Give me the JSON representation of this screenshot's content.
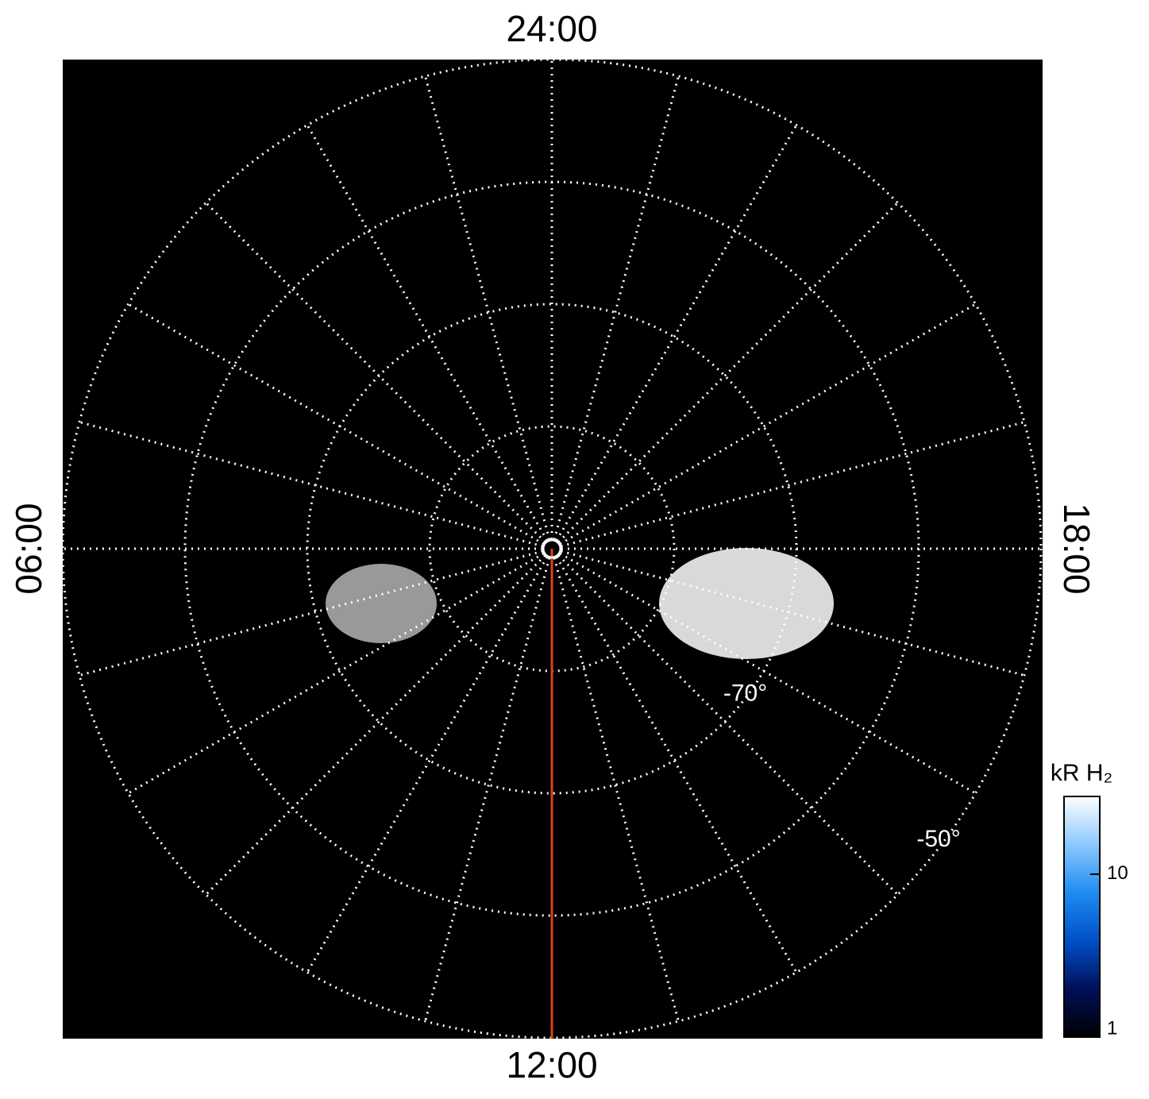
{
  "chart_data": {
    "type": "polar-image",
    "local_time_labels": {
      "top": "24:00",
      "left": "06:00",
      "right": "18:00",
      "bottom": "12:00"
    },
    "rlim": [
      -90,
      -50
    ],
    "rticks": [
      -80,
      {
        "value": -70,
        "label": "-70°"
      },
      -60,
      {
        "value": -50,
        "label": "-50°"
      }
    ],
    "meridians_hours": 24,
    "colorbar": {
      "title": "kR H₂",
      "clim": [
        1,
        30
      ],
      "log": true,
      "ticks": [
        1,
        10
      ],
      "colormap": [
        "#000000",
        "#00105a",
        "#0050c8",
        "#1e8cf0",
        "#8cc8ff",
        "#ffffff"
      ]
    },
    "meridian_line_color": "#d9441a"
  }
}
